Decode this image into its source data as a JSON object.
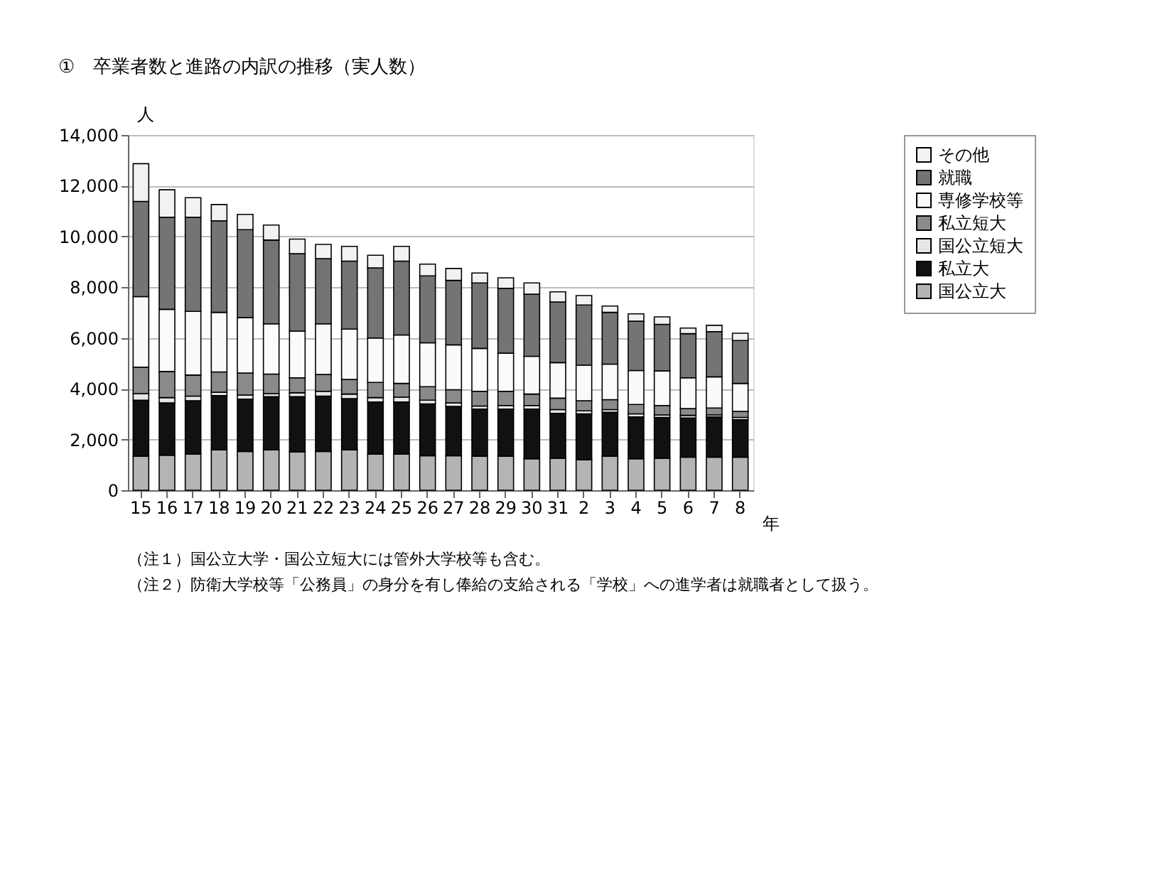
{
  "chart_data": {
    "type": "bar",
    "stacked": true,
    "title": "①　卒業者数と進路の内訳の推移（実人数）",
    "ylabel": "人",
    "xlabel": "年",
    "categories": [
      "15",
      "16",
      "17",
      "18",
      "19",
      "20",
      "21",
      "22",
      "23",
      "24",
      "25",
      "26",
      "27",
      "28",
      "29",
      "30",
      "31",
      "2",
      "3",
      "4",
      "5",
      "6",
      "7",
      "8"
    ],
    "ylim": [
      0,
      14000
    ],
    "yticks": [
      {
        "value": 0,
        "label": "0"
      },
      {
        "value": 2000,
        "label": "2,000"
      },
      {
        "value": 4000,
        "label": "4,000"
      },
      {
        "value": 6000,
        "label": "6,000"
      },
      {
        "value": 8000,
        "label": "8,000"
      },
      {
        "value": 10000,
        "label": "10,000"
      },
      {
        "value": 12000,
        "label": "12,000"
      },
      {
        "value": 14000,
        "label": "14,000"
      }
    ],
    "grid": "y",
    "legend": "right",
    "series": [
      {
        "name": "国公立大",
        "color": "#b4b4b4",
        "values": [
          1340,
          1380,
          1420,
          1590,
          1530,
          1590,
          1510,
          1530,
          1590,
          1420,
          1420,
          1360,
          1360,
          1340,
          1340,
          1240,
          1260,
          1200,
          1340,
          1240,
          1260,
          1300,
          1300,
          1300
        ]
      },
      {
        "name": "私立大",
        "color": "#111111",
        "values": [
          2210,
          2060,
          2110,
          2140,
          2060,
          2100,
          2180,
          2180,
          2020,
          2060,
          2060,
          2040,
          1940,
          1860,
          1860,
          1960,
          1770,
          1810,
          1730,
          1650,
          1610,
          1550,
          1590,
          1480
        ]
      },
      {
        "name": "国公立短大",
        "color": "#e6e6e6",
        "values": [
          260,
          210,
          180,
          130,
          160,
          120,
          150,
          190,
          180,
          170,
          190,
          150,
          140,
          120,
          140,
          140,
          150,
          120,
          110,
          120,
          100,
          100,
          80,
          90
        ]
      },
      {
        "name": "私立短大",
        "color": "#8a8a8a",
        "values": [
          1040,
          1030,
          830,
          800,
          870,
          770,
          590,
          660,
          580,
          600,
          540,
          530,
          520,
          580,
          560,
          450,
          450,
          400,
          390,
          370,
          370,
          270,
          270,
          240
        ]
      },
      {
        "name": "専修学校等",
        "color": "#fafafa",
        "values": [
          2780,
          2450,
          2510,
          2350,
          2180,
          1980,
          1840,
          2000,
          1980,
          1750,
          1910,
          1730,
          1770,
          1690,
          1500,
          1490,
          1400,
          1400,
          1400,
          1340,
          1360,
          1210,
          1230,
          1100
        ]
      },
      {
        "name": "就職",
        "color": "#747474",
        "values": [
          3750,
          3630,
          3710,
          3610,
          3470,
          3300,
          3050,
          2570,
          2680,
          2760,
          2910,
          2640,
          2540,
          2580,
          2560,
          2450,
          2390,
          2370,
          2040,
          1940,
          1840,
          1740,
          1780,
          1690
        ]
      },
      {
        "name": "その他",
        "color": "#f2f2f2",
        "values": [
          1490,
          1080,
          770,
          640,
          600,
          590,
          580,
          560,
          580,
          500,
          580,
          460,
          470,
          390,
          410,
          440,
          400,
          370,
          250,
          290,
          290,
          220,
          250,
          290
        ]
      }
    ],
    "annotations": [
      "（注１）国公立大学・国公立短大には管外大学校等も含む。",
      "（注２）防衛大学校等「公務員」の身分を有し俸給の支給される「学校」への進学者は就職者として扱う。"
    ]
  }
}
